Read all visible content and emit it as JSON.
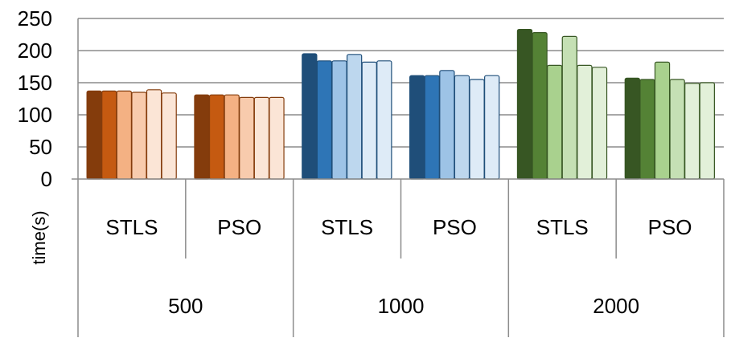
{
  "chart_data": {
    "type": "bar",
    "ylabel": "time(s)",
    "ylim": [
      0,
      250
    ],
    "yticks": [
      0,
      50,
      100,
      150,
      200,
      250
    ],
    "grid": true,
    "groups": [
      {
        "label": "500",
        "colors": [
          "#843C0C",
          "#C55A11",
          "#F4B183",
          "#F8CBAD",
          "#FBE5D6"
        ],
        "stroke": "#843C0C",
        "subgroups": [
          {
            "label": "STLS",
            "values": [
              137,
              137,
              137,
              135,
              139,
              134
            ]
          },
          {
            "label": "PSO",
            "values": [
              131,
              131,
              131,
              127,
              127,
              127
            ]
          }
        ]
      },
      {
        "label": "1000",
        "colors": [
          "#1F4E79",
          "#2E75B6",
          "#9DC3E6",
          "#BDD7EE",
          "#DEEBF7"
        ],
        "stroke": "#1F4E79",
        "subgroups": [
          {
            "label": "STLS",
            "values": [
              195,
              184,
              184,
              194,
              182,
              184
            ]
          },
          {
            "label": "PSO",
            "values": [
              161,
              161,
              169,
              161,
              155,
              161
            ]
          }
        ]
      },
      {
        "label": "2000",
        "colors": [
          "#375623",
          "#548235",
          "#A9D18E",
          "#C5E0B4",
          "#E2F0D9"
        ],
        "stroke": "#375623",
        "subgroups": [
          {
            "label": "STLS",
            "values": [
              233,
              228,
              177,
              222,
              177,
              174
            ]
          },
          {
            "label": "PSO",
            "values": [
              157,
              155,
              182,
              155,
              149,
              150
            ]
          }
        ]
      }
    ]
  }
}
